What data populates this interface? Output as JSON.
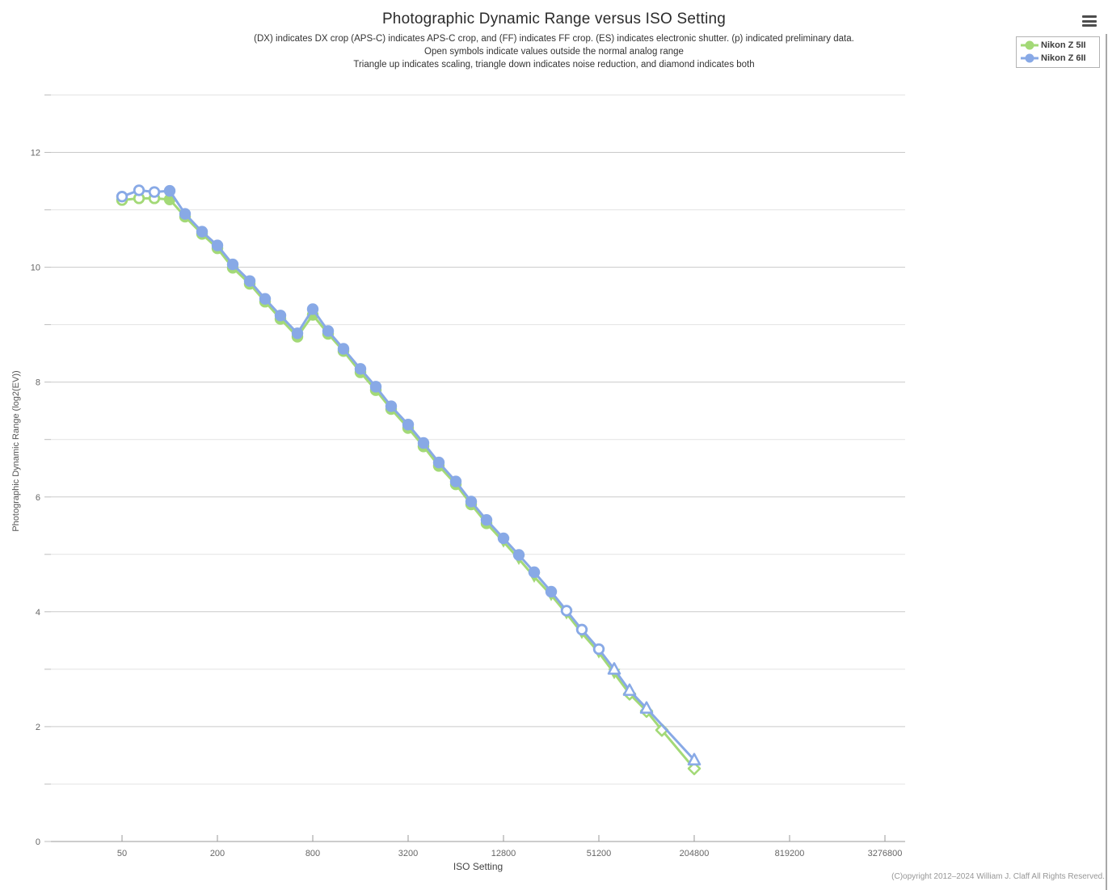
{
  "page": {
    "title": "Photographic Dynamic Range versus ISO Setting",
    "subtitle_lines": [
      "(DX) indicates DX crop (APS-C) indicates APS-C crop, and (FF) indicates FF crop. (ES) indicates electronic shutter. (p) indicated preliminary data.",
      "Open symbols indicate values outside the normal analog range",
      "Triangle up indicates scaling, triangle down indicates noise reduction, and diamond indicates both"
    ],
    "copyright": "(C)opyright 2012–2024 William J. Claff All Rights Reserved."
  },
  "chart_data": {
    "type": "line",
    "title": "Photographic Dynamic Range versus ISO Setting",
    "x_axis": {
      "label": "ISO Setting",
      "scale": "log",
      "ticks": [
        50,
        200,
        800,
        3200,
        12800,
        51200,
        204800,
        819200,
        3276800
      ]
    },
    "y_axis": {
      "label": "Photographic Dynamic Range (log2(EV))",
      "ticks": [
        0,
        2,
        4,
        6,
        8,
        10,
        12
      ],
      "range": [
        0,
        13
      ],
      "gridlines": "major-and-minor"
    },
    "legend_position": "top-right",
    "marker_meaning": {
      "open": "outside normal analog range",
      "triangle-up": "scaling",
      "triangle-down": "noise reduction",
      "diamond": "scaling and noise reduction"
    },
    "series": [
      {
        "name": "Nikon Z 5II",
        "color": "#a3d977",
        "points": [
          [
            50,
            11.17,
            "circle-open"
          ],
          [
            64,
            11.2,
            "circle-open"
          ],
          [
            80,
            11.2,
            "circle-open"
          ],
          [
            100,
            11.18,
            "circle"
          ],
          [
            125,
            10.88,
            "circle"
          ],
          [
            160,
            10.58,
            "circle"
          ],
          [
            200,
            10.33,
            "circle"
          ],
          [
            250,
            9.99,
            "circle"
          ],
          [
            320,
            9.71,
            "circle"
          ],
          [
            400,
            9.4,
            "circle"
          ],
          [
            500,
            9.1,
            "circle"
          ],
          [
            640,
            8.79,
            "circle"
          ],
          [
            800,
            9.17,
            "circle"
          ],
          [
            1000,
            8.84,
            "circle"
          ],
          [
            1250,
            8.54,
            "circle"
          ],
          [
            1600,
            8.17,
            "circle"
          ],
          [
            2000,
            7.86,
            "circle"
          ],
          [
            2500,
            7.53,
            "circle"
          ],
          [
            3200,
            7.2,
            "circle"
          ],
          [
            4000,
            6.88,
            "circle"
          ],
          [
            5000,
            6.54,
            "circle"
          ],
          [
            6400,
            6.22,
            "circle"
          ],
          [
            8000,
            5.87,
            "circle"
          ],
          [
            10000,
            5.54,
            "circle"
          ],
          [
            12800,
            5.22,
            "triangle-down"
          ],
          [
            16000,
            4.92,
            "triangle-down"
          ],
          [
            20000,
            4.61,
            "triangle-down"
          ],
          [
            25600,
            4.29,
            "triangle-down"
          ],
          [
            32000,
            3.97,
            "triangle-down"
          ],
          [
            40000,
            3.63,
            "triangle-down"
          ],
          [
            51200,
            3.29,
            "triangle-down"
          ],
          [
            64000,
            2.93,
            "triangle-down"
          ],
          [
            80000,
            2.57,
            "diamond-open"
          ],
          [
            102400,
            2.27,
            "diamond-open"
          ],
          [
            128000,
            1.94,
            "diamond-open"
          ],
          [
            204800,
            1.27,
            "diamond-open"
          ]
        ]
      },
      {
        "name": "Nikon Z 6II",
        "color": "#88a9e6",
        "points": [
          [
            50,
            11.23,
            "circle-open"
          ],
          [
            64,
            11.34,
            "circle-open"
          ],
          [
            80,
            11.31,
            "circle-open"
          ],
          [
            100,
            11.33,
            "circle"
          ],
          [
            125,
            10.93,
            "circle"
          ],
          [
            160,
            10.62,
            "circle"
          ],
          [
            200,
            10.38,
            "circle"
          ],
          [
            250,
            10.05,
            "circle"
          ],
          [
            320,
            9.76,
            "circle"
          ],
          [
            400,
            9.45,
            "circle"
          ],
          [
            500,
            9.16,
            "circle"
          ],
          [
            640,
            8.85,
            "circle"
          ],
          [
            800,
            9.27,
            "circle"
          ],
          [
            1000,
            8.89,
            "circle"
          ],
          [
            1250,
            8.58,
            "circle"
          ],
          [
            1600,
            8.23,
            "circle"
          ],
          [
            2000,
            7.92,
            "circle"
          ],
          [
            2500,
            7.58,
            "circle"
          ],
          [
            3200,
            7.26,
            "circle"
          ],
          [
            4000,
            6.94,
            "circle"
          ],
          [
            5000,
            6.6,
            "circle"
          ],
          [
            6400,
            6.27,
            "circle"
          ],
          [
            8000,
            5.92,
            "circle"
          ],
          [
            10000,
            5.6,
            "circle"
          ],
          [
            12800,
            5.28,
            "circle"
          ],
          [
            16000,
            4.99,
            "circle"
          ],
          [
            20000,
            4.69,
            "circle"
          ],
          [
            25600,
            4.35,
            "circle"
          ],
          [
            32000,
            4.02,
            "circle-open"
          ],
          [
            40000,
            3.69,
            "circle-open"
          ],
          [
            51200,
            3.35,
            "circle-open"
          ],
          [
            64000,
            3.0,
            "triangle-up-open"
          ],
          [
            80000,
            2.63,
            "triangle-up-open"
          ],
          [
            102400,
            2.32,
            "triangle-up-open"
          ],
          [
            204800,
            1.42,
            "triangle-up-open"
          ]
        ]
      }
    ]
  }
}
